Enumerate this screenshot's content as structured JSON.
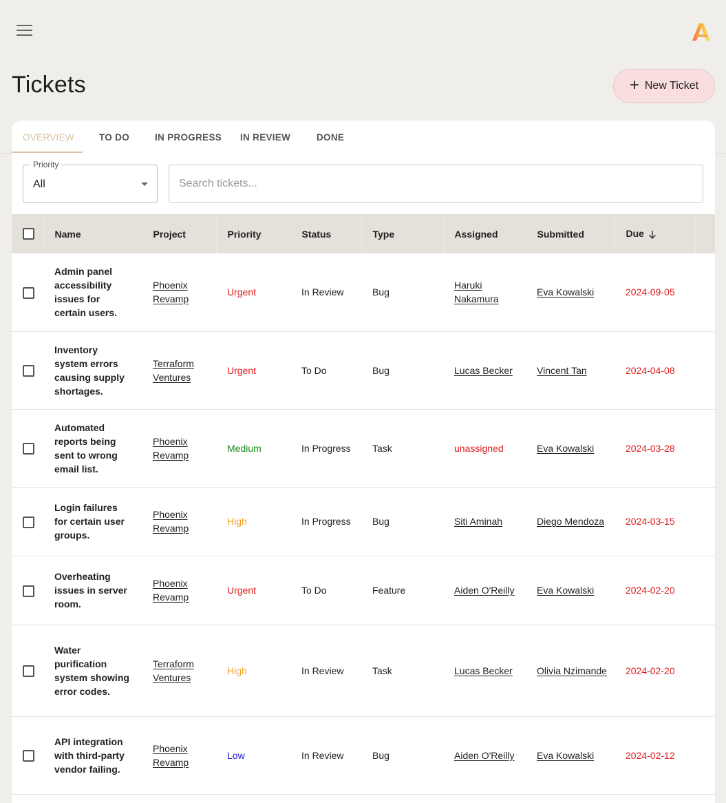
{
  "header": {
    "title": "Tickets",
    "new_ticket_label": "New Ticket",
    "plus_glyph": "+",
    "menu_icon": "hamburger-menu-icon",
    "logo_icon": "app-logo-a-icon"
  },
  "tabs": [
    {
      "label": "OVERVIEW",
      "active": true
    },
    {
      "label": "TO DO",
      "active": false
    },
    {
      "label": "IN PROGRESS",
      "active": false
    },
    {
      "label": "IN REVIEW",
      "active": false
    },
    {
      "label": "DONE",
      "active": false
    }
  ],
  "filters": {
    "priority_label": "Priority",
    "priority_value": "All",
    "search_placeholder": "Search tickets..."
  },
  "table": {
    "columns": [
      "Name",
      "Project",
      "Priority",
      "Status",
      "Type",
      "Assigned",
      "Submitted",
      "Due"
    ],
    "sort_column": "Due",
    "sort_direction": "descending",
    "rows": [
      {
        "name": "Admin panel accessibility issues for certain users.",
        "project": "Phoenix Revamp",
        "priority": "Urgent",
        "status": "In Review",
        "type": "Bug",
        "assigned": "Haruki Nakamura",
        "submitted": "Eva Kowalski",
        "due": "2024-09-05"
      },
      {
        "name": "Inventory system errors causing supply shortages.",
        "project": "Terraform Ventures",
        "priority": "Urgent",
        "status": "To Do",
        "type": "Bug",
        "assigned": "Lucas Becker",
        "submitted": "Vincent Tan",
        "due": "2024-04-08"
      },
      {
        "name": "Automated reports being sent to wrong email list.",
        "project": "Phoenix Revamp",
        "priority": "Medium",
        "status": "In Progress",
        "type": "Task",
        "assigned": "unassigned",
        "submitted": "Eva Kowalski",
        "due": "2024-03-28"
      },
      {
        "name": "Login failures for certain user groups.",
        "project": "Phoenix Revamp",
        "priority": "High",
        "status": "In Progress",
        "type": "Bug",
        "assigned": "Siti Aminah",
        "submitted": "Diego Mendoza",
        "due": "2024-03-15"
      },
      {
        "name": "Overheating issues in server room.",
        "project": "Phoenix Revamp",
        "priority": "Urgent",
        "status": "To Do",
        "type": "Feature",
        "assigned": "Aiden O'Reilly",
        "submitted": "Eva Kowalski",
        "due": "2024-02-20"
      },
      {
        "name": "Water purification system showing error codes.",
        "project": "Terraform Ventures",
        "priority": "High",
        "status": "In Review",
        "type": "Task",
        "assigned": "Lucas Becker",
        "submitted": "Olivia Nzimande",
        "due": "2024-02-20"
      },
      {
        "name": "API integration with third-party vendor failing.",
        "project": "Phoenix Revamp",
        "priority": "Low",
        "status": "In Review",
        "type": "Bug",
        "assigned": "Aiden O'Reilly",
        "submitted": "Eva Kowalski",
        "due": "2024-02-12"
      }
    ]
  },
  "colors": {
    "accent": "#d9c3a5",
    "urgent": "#e01b1b",
    "high": "#f0a22a",
    "medium": "#1d8a1d",
    "low": "#1a1ad6",
    "header_bg": "#e4e1da",
    "page_bg": "#f0eeea",
    "new_ticket_bg": "#f8dede"
  }
}
